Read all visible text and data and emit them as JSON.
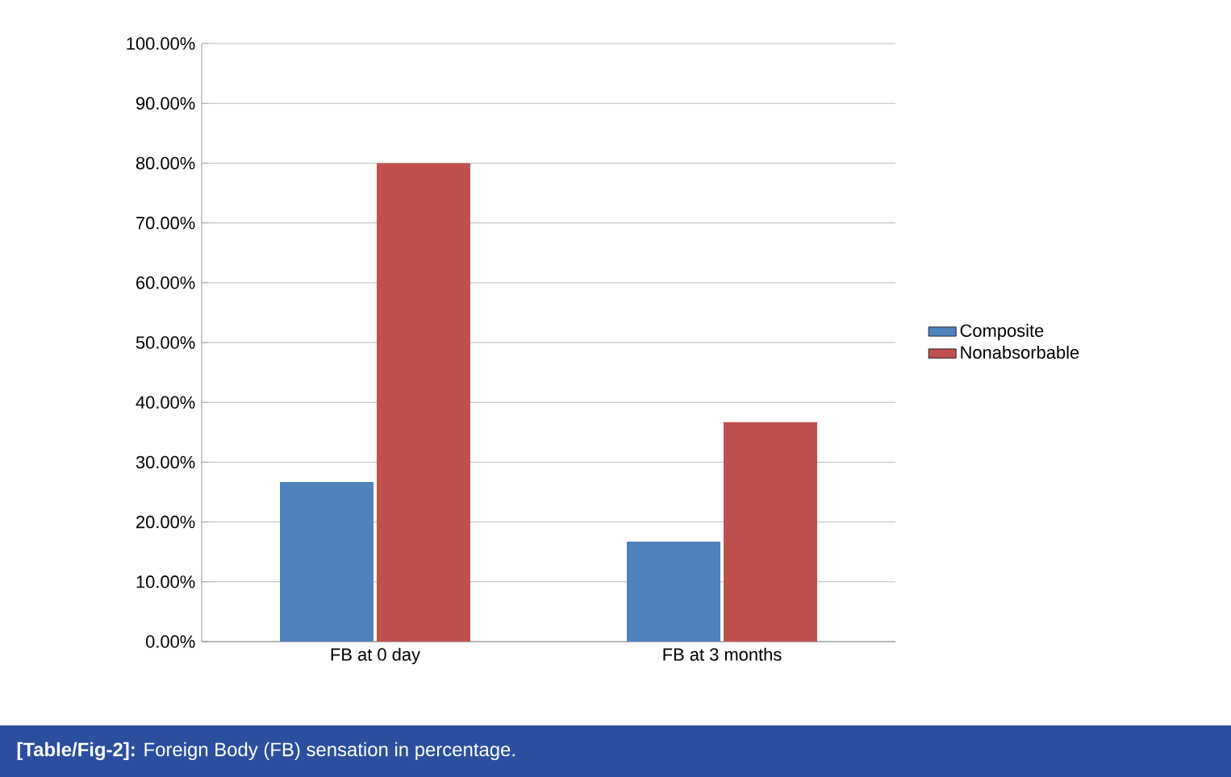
{
  "chart_data": {
    "type": "bar",
    "categories": [
      "FB at 0 day",
      "FB at 3 months"
    ],
    "series": [
      {
        "name": "Composite",
        "color": "#4f81bd",
        "values": [
          26.7,
          16.7
        ]
      },
      {
        "name": "Nonabsorbable",
        "color": "#c0504d",
        "values": [
          80,
          36.7
        ]
      }
    ],
    "ylim": [
      0,
      100
    ],
    "yticks": [
      {
        "value": 0,
        "label": "0.00%"
      },
      {
        "value": 10,
        "label": "10.00%"
      },
      {
        "value": 20,
        "label": "20.00%"
      },
      {
        "value": 30,
        "label": "30.00%"
      },
      {
        "value": 40,
        "label": "40.00%"
      },
      {
        "value": 50,
        "label": "50.00%"
      },
      {
        "value": 60,
        "label": "60.00%"
      },
      {
        "value": 70,
        "label": "70.00%"
      },
      {
        "value": 80,
        "label": "80.00%"
      },
      {
        "value": 90,
        "label": "90.00%"
      },
      {
        "value": 100,
        "label": "100.00%"
      }
    ],
    "grid": "y",
    "legend": "right",
    "annotations": [
      "**[Table/Fig-2]:** Foreign Body (FB) sensation in percentage."
    ]
  }
}
